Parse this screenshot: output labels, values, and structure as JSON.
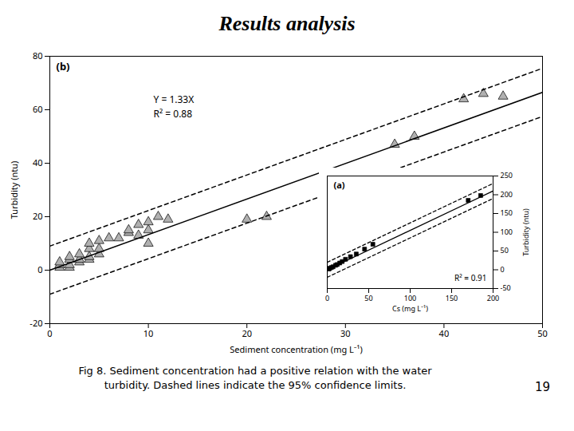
{
  "chart_data": [
    {
      "type": "scatter",
      "title": "Results analysis",
      "caption": [
        "Fig 8. Sediment concentration had a positive relation with the water",
        "turbidity. Dashed lines indicate the 95% confidence limits."
      ],
      "page_number": "19",
      "xlabel": "Sediment concentration (mg L⁻¹)",
      "ylabel": "Turbidity (ntu)",
      "xlim": [
        0,
        50
      ],
      "ylim": [
        -20,
        80
      ],
      "xticks": [
        0,
        10,
        20,
        30,
        40,
        50
      ],
      "yticks": [
        -20,
        0,
        20,
        40,
        60,
        80
      ],
      "annotations": [
        "(b)",
        "Y = 1.33X",
        "R² = 0.88"
      ],
      "series": [
        {
          "type": "scatter",
          "marker": "triangle",
          "color": "#b0b0b0",
          "x": [
            1,
            1,
            1,
            2,
            2,
            2,
            2,
            3,
            3,
            3,
            4,
            4,
            4,
            4,
            5,
            5,
            5,
            6,
            7,
            8,
            8,
            9,
            9,
            10,
            10,
            10,
            11,
            12,
            20,
            22,
            35,
            37,
            42,
            44,
            46
          ],
          "values": [
            1,
            2,
            3,
            1,
            2,
            4,
            5,
            3,
            4,
            6,
            4,
            5,
            8,
            10,
            6,
            8,
            11,
            12,
            12,
            14,
            15,
            13,
            17,
            10,
            15,
            18,
            20,
            19,
            19,
            20,
            47,
            50,
            64,
            66,
            65
          ]
        },
        {
          "type": "line",
          "line_style": "solid",
          "color": "black",
          "x": [
            0,
            50
          ],
          "values": [
            0,
            66.5
          ]
        },
        {
          "type": "line",
          "line_style": "dashed",
          "color": "black",
          "x": [
            0,
            50
          ],
          "values": [
            9,
            75.5
          ]
        },
        {
          "type": "line",
          "line_style": "dashed",
          "color": "black",
          "x": [
            0,
            50
          ],
          "values": [
            -9,
            57.5
          ]
        }
      ]
    },
    {
      "type": "scatter",
      "xlabel": "Cs (mg L⁻¹)",
      "ylabel": "Turbidity (ntu)",
      "xlim": [
        0,
        200
      ],
      "ylim": [
        -50,
        250
      ],
      "xticks": [
        0,
        50,
        100,
        150,
        200
      ],
      "yticks": [
        -50,
        0,
        50,
        100,
        150,
        200,
        250
      ],
      "annotations": [
        "(a)",
        "R² = 0.91"
      ],
      "series": [
        {
          "type": "scatter",
          "marker": "square",
          "color": "black",
          "x": [
            2,
            3,
            5,
            7,
            10,
            12,
            15,
            18,
            22,
            28,
            35,
            45,
            55,
            170,
            185
          ],
          "values": [
            2,
            4,
            6,
            8,
            12,
            14,
            18,
            22,
            28,
            35,
            42,
            55,
            68,
            185,
            198
          ]
        },
        {
          "type": "line",
          "line_style": "solid",
          "color": "black",
          "x": [
            0,
            200
          ],
          "values": [
            0,
            210
          ]
        },
        {
          "type": "line",
          "line_style": "dashed",
          "color": "black",
          "x": [
            0,
            200
          ],
          "values": [
            20,
            230
          ]
        },
        {
          "type": "line",
          "line_style": "dashed",
          "color": "black",
          "x": [
            0,
            200
          ],
          "values": [
            -20,
            190
          ]
        }
      ]
    }
  ]
}
